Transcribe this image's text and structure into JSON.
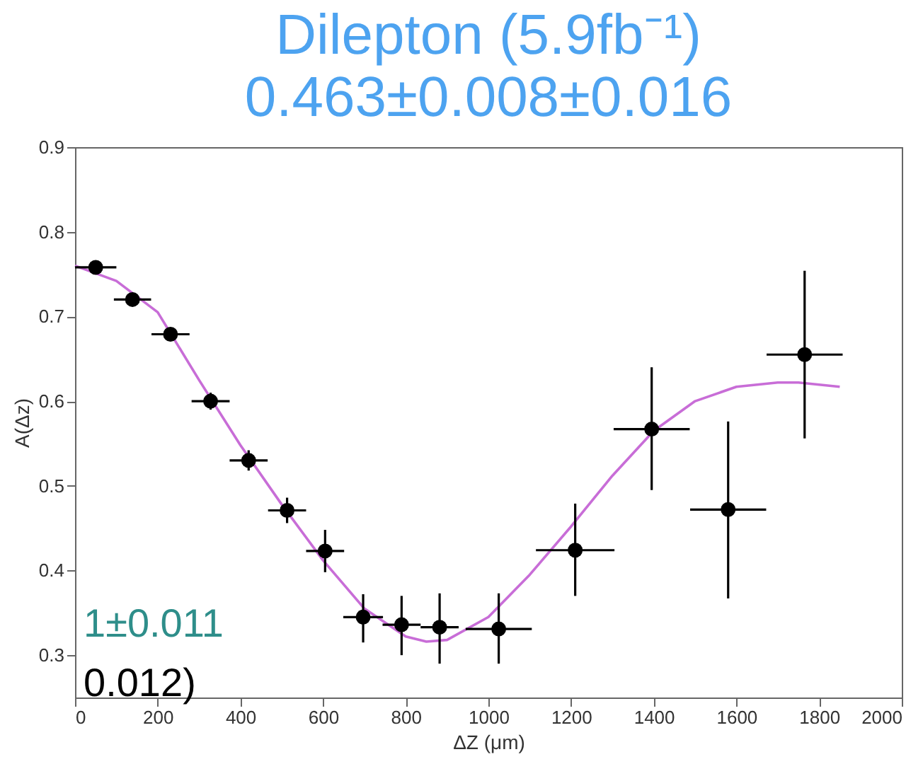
{
  "chart_data": {
    "type": "scatter",
    "title": "Dilepton (5.9fb⁻¹)",
    "subtitle": "0.463±0.008±0.016",
    "xlabel": "ΔZ (μm)",
    "ylabel": "A(Δz)",
    "xlim": [
      0,
      2000
    ],
    "ylim": [
      0.25,
      0.9
    ],
    "xticks": [
      0,
      200,
      400,
      600,
      800,
      1000,
      1200,
      1400,
      1600,
      1800,
      2000
    ],
    "yticks": [
      0.3,
      0.4,
      0.5,
      0.6,
      0.7,
      0.8,
      0.9
    ],
    "annotations": [
      "1±0.011",
      "0.012)"
    ],
    "series": [
      {
        "type": "line",
        "color": "#c86dd7",
        "x": [
          0,
          100,
          200,
          300,
          400,
          500,
          600,
          700,
          800,
          850,
          900,
          1000,
          1100,
          1200,
          1300,
          1400,
          1500,
          1600,
          1700,
          1750,
          1850
        ],
        "values": [
          0.76,
          0.742,
          0.705,
          0.625,
          0.548,
          0.478,
          0.412,
          0.355,
          0.322,
          0.316,
          0.318,
          0.345,
          0.395,
          0.452,
          0.512,
          0.565,
          0.6,
          0.617,
          0.622,
          0.622,
          0.617
        ]
      },
      {
        "marker": "circle",
        "color": "#000000",
        "x": [
          50,
          139,
          231,
          328,
          420,
          513,
          605,
          697,
          790,
          882,
          1025,
          1210,
          1395,
          1580,
          1765
        ],
        "values": [
          0.758,
          0.72,
          0.679,
          0.6,
          0.53,
          0.471,
          0.423,
          0.345,
          0.336,
          0.333,
          0.331,
          0.424,
          0.567,
          0.472,
          0.655
        ],
        "errors": [
          0.005,
          0.006,
          0.008,
          0.01,
          0.012,
          0.015,
          0.025,
          [
            0.315,
            0.372
          ],
          [
            0.3,
            0.37
          ],
          [
            0.29,
            0.373
          ],
          [
            0.29,
            0.373
          ],
          [
            0.37,
            0.479
          ],
          [
            0.495,
            0.64
          ],
          [
            0.367,
            0.576
          ],
          [
            0.556,
            0.754
          ]
        ],
        "xerrors": [
          50,
          45,
          46,
          46,
          46,
          46,
          46,
          48,
          46,
          46,
          80,
          95,
          92,
          92,
          92
        ]
      }
    ]
  }
}
